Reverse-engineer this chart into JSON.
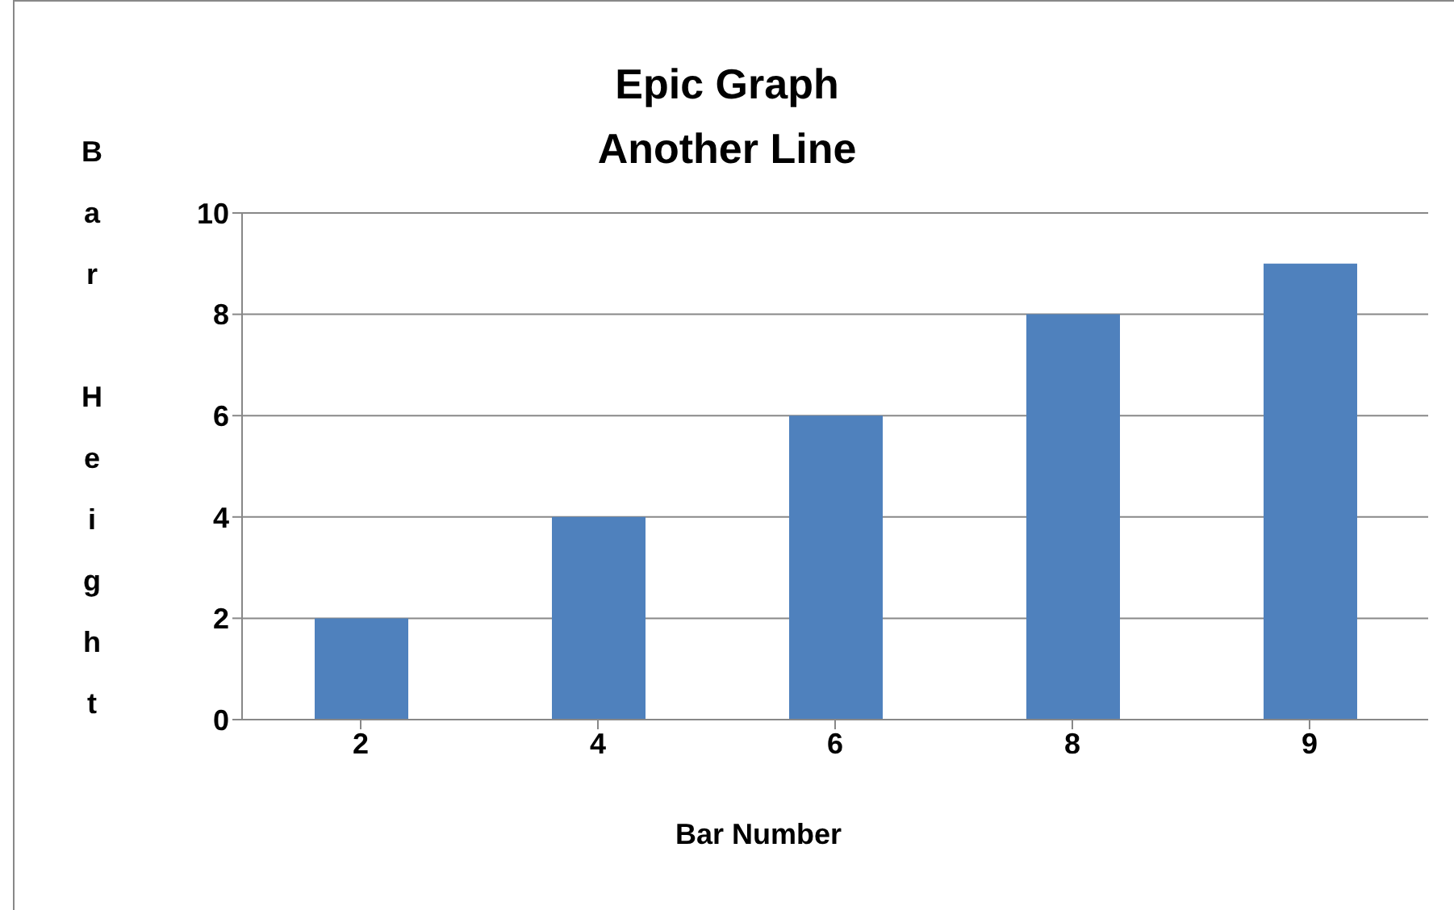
{
  "chart_data": {
    "type": "bar",
    "title": "Epic Graph",
    "subtitle": "Another Line",
    "xlabel": "Bar Number",
    "ylabel": "Bar Height",
    "categories": [
      "2",
      "4",
      "6",
      "8",
      "9"
    ],
    "series": [
      {
        "color": "#4f81bd",
        "values": [
          2,
          4,
          6,
          8,
          9
        ]
      }
    ],
    "ylim": [
      0,
      10
    ],
    "yticks": [
      0,
      2,
      4,
      6,
      8,
      10
    ],
    "grid": "y",
    "legend": false
  }
}
